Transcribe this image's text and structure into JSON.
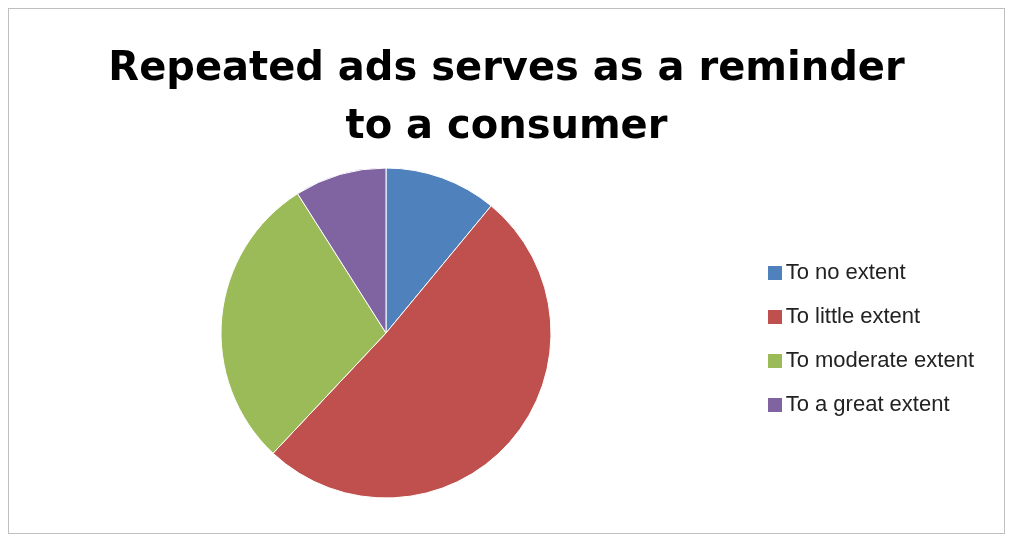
{
  "chart_data": {
    "type": "pie",
    "title": "Repeated ads serves as a reminder to a consumer",
    "categories": [
      "To no extent",
      "To little extent",
      "To moderate extent",
      "To a great extent"
    ],
    "values": [
      11,
      51,
      29,
      9
    ],
    "colors": [
      "#4f81bd",
      "#c0504d",
      "#9bbb59",
      "#8064a2"
    ],
    "legend": "right"
  }
}
